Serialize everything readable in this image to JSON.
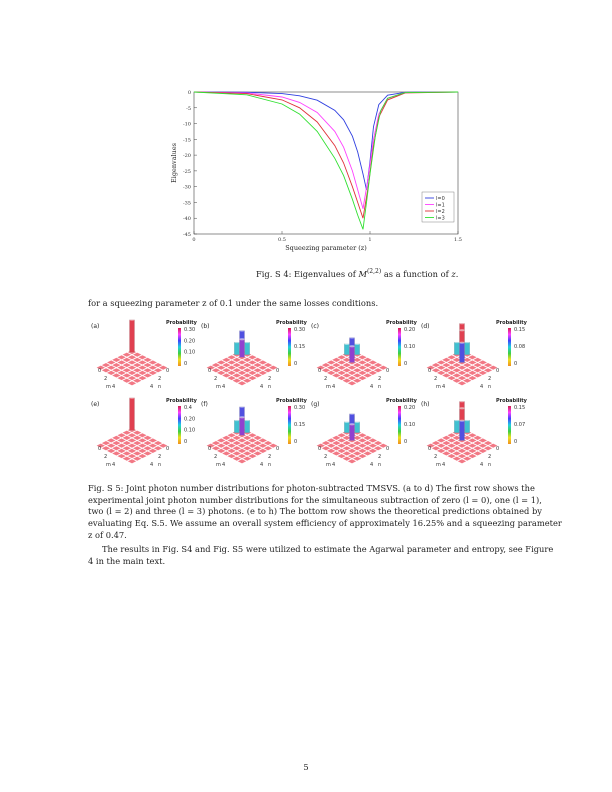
{
  "chart_data": {
    "type": "line",
    "xlabel": "Squeezing parameter (z)",
    "ylabel": "Eigenvalues",
    "xlim": [
      0,
      1.5
    ],
    "ylim": [
      -45,
      0
    ],
    "xticks": [
      "0",
      "0.5",
      "1",
      "1.5"
    ],
    "yticks": [
      "0",
      "-5",
      "-10",
      "-15",
      "-20",
      "-25",
      "-30",
      "-35",
      "-40",
      "-45"
    ],
    "grid": false,
    "legend": "bottom-right",
    "series": [
      {
        "name": "l=0",
        "color": "#2f3fe0",
        "x": [
          0,
          0.3,
          0.5,
          0.6,
          0.7,
          0.8,
          0.85,
          0.9,
          0.93,
          0.96,
          0.98,
          1.0,
          1.02,
          1.05,
          1.1,
          1.2,
          1.5
        ],
        "values": [
          0,
          -0.1,
          -0.5,
          -1.2,
          -2.6,
          -5.8,
          -8.8,
          -14,
          -19,
          -26,
          -31,
          -22,
          -11,
          -4,
          -1,
          -0.1,
          0
        ]
      },
      {
        "name": "l=1",
        "color": "#ff40ff",
        "x": [
          0,
          0.3,
          0.5,
          0.6,
          0.7,
          0.8,
          0.85,
          0.9,
          0.93,
          0.96,
          0.99,
          1.02,
          1.05,
          1.1,
          1.2,
          1.5
        ],
        "values": [
          0,
          -0.3,
          -1.6,
          -3.3,
          -6.5,
          -12.5,
          -17.5,
          -25,
          -31,
          -37,
          -27,
          -15,
          -7,
          -2,
          -0.2,
          0
        ]
      },
      {
        "name": "l=2",
        "color": "#e0303a",
        "x": [
          0,
          0.3,
          0.5,
          0.6,
          0.7,
          0.8,
          0.85,
          0.9,
          0.93,
          0.96,
          0.99,
          1.02,
          1.05,
          1.1,
          1.2,
          1.5
        ],
        "values": [
          0,
          -0.5,
          -2.5,
          -5,
          -9.5,
          -17,
          -22.5,
          -30,
          -35,
          -40,
          -30,
          -17,
          -8,
          -2.5,
          -0.3,
          0
        ]
      },
      {
        "name": "l=3",
        "color": "#30e030",
        "x": [
          0,
          0.3,
          0.5,
          0.6,
          0.7,
          0.8,
          0.85,
          0.9,
          0.93,
          0.96,
          0.98,
          1.0,
          1.03,
          1.06,
          1.1,
          1.2,
          1.5
        ],
        "values": [
          0,
          -0.9,
          -3.8,
          -7,
          -12.5,
          -21,
          -26.5,
          -34,
          -39,
          -43.5,
          -35,
          -26,
          -14,
          -6,
          -2,
          -0.2,
          0
        ]
      }
    ]
  },
  "fig4_caption": "Fig. S 4: Eigenvalues of M(2,2) as a function of z.",
  "fig4_caption_parts": {
    "pre": "Fig. S 4: Eigenvalues of ",
    "m": "M",
    "sup": "(2,2)",
    "post": " as a function of ",
    "z": "z",
    "end": "."
  },
  "para1": "for a squeezing parameter z of 0.1 under the same losses conditions.",
  "fig5": {
    "colorbar_title": "Probability",
    "axis_m": "m",
    "axis_n": "n",
    "panels": [
      {
        "label": "(a)",
        "ticks": [
          "0.30",
          "0.20",
          "0.10",
          "0"
        ]
      },
      {
        "label": "(b)",
        "ticks": [
          "0.30",
          "0.15",
          "0"
        ]
      },
      {
        "label": "(c)",
        "ticks": [
          "0.20",
          "0.10",
          "0"
        ]
      },
      {
        "label": "(d)",
        "ticks": [
          "0.15",
          "0.08",
          "0"
        ]
      },
      {
        "label": "(e)",
        "ticks": [
          "0.4",
          "0.20",
          "0.10",
          "0"
        ]
      },
      {
        "label": "(f)",
        "ticks": [
          "0.30",
          "0.15",
          "0"
        ]
      },
      {
        "label": "(g)",
        "ticks": [
          "0.20",
          "0.10",
          "0"
        ]
      },
      {
        "label": "(h)",
        "ticks": [
          "0.15",
          "0.07",
          "0"
        ]
      }
    ],
    "grid_ticks": [
      "0",
      "2",
      "4"
    ]
  },
  "fig5_caption_lines": [
    "Fig. S 5: Joint photon number distributions for photon-subtracted TMSVS. (a to d) The first row shows the",
    "experimental joint photon number distributions for the simultaneous subtraction of zero (l = 0), one (l = 1),",
    "two (l = 2) and three (l = 3) photons. (e to h) The bottom row shows the theoretical predictions obtained by",
    "evaluating Eq. S.5. We assume an overall system efficiency of approximately 16.25% and a squeezing parameter",
    "z of 0.47."
  ],
  "para2_lines": [
    "The results in Fig. S4 and Fig. S5 were utilized to estimate the Agarwal parameter and entropy, see Figure",
    "4 in the main text."
  ],
  "page_number": "5"
}
